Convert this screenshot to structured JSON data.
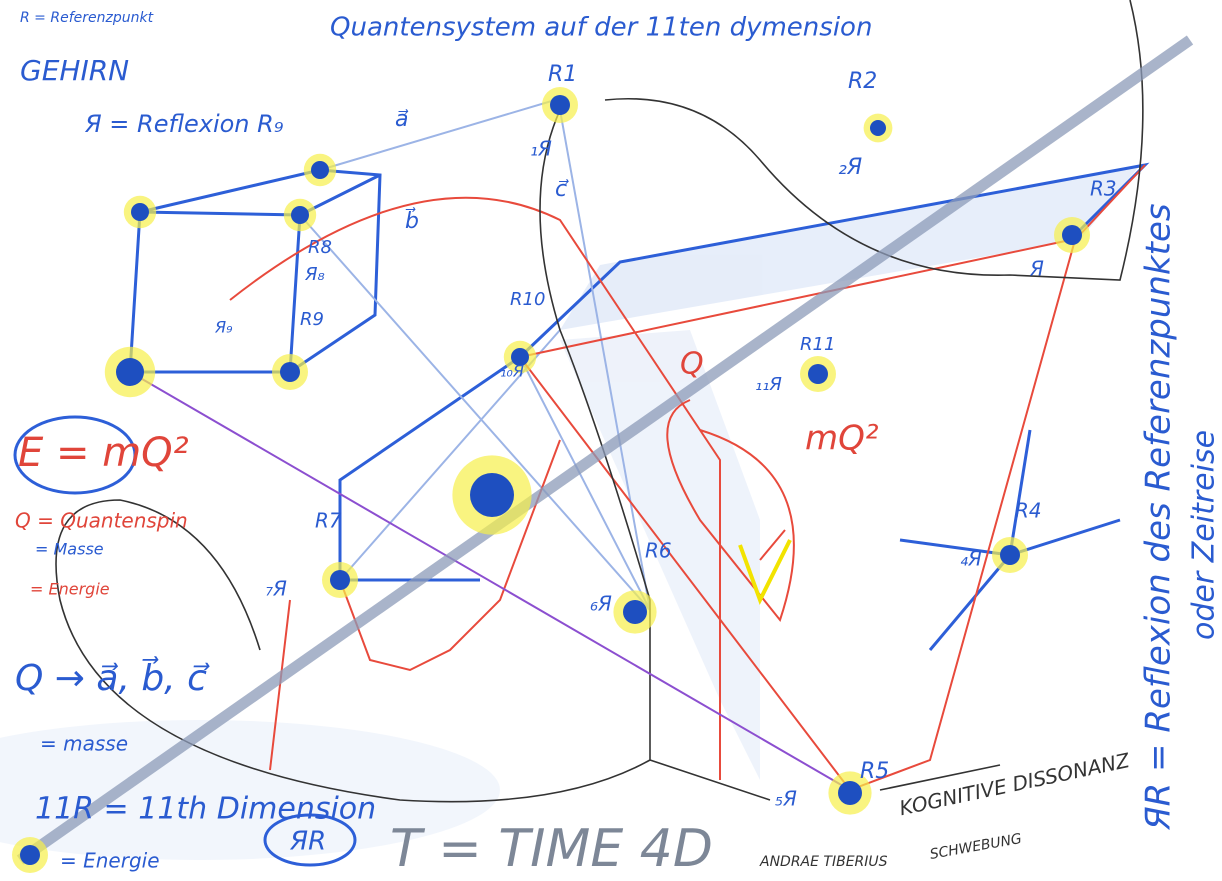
{
  "header": {
    "reference": "R = Referenzpunkt",
    "title": "Quantensystem auf der 11ten dymension",
    "brain": "GEHIRN",
    "reflection": "Я = Reflexion R₉"
  },
  "vectors": {
    "a": "a⃗",
    "b": "b⃗",
    "c": "c⃗"
  },
  "nodes": [
    {
      "label": "R1",
      "reflection": "₁Я"
    },
    {
      "label": "R2",
      "reflection": "₂Я"
    },
    {
      "label": "R3",
      "reflection": "Я"
    },
    {
      "label": "R4",
      "reflection": "₄Я"
    },
    {
      "label": "R5",
      "reflection": "₅Я"
    },
    {
      "label": "R6",
      "reflection": "₆Я"
    },
    {
      "label": "R7",
      "reflection": "₇Я"
    },
    {
      "label": "R8",
      "reflection": "Я₈"
    },
    {
      "label": "R9",
      "reflection": "Я₉"
    },
    {
      "label": "R10",
      "reflection": "₁₀Я"
    },
    {
      "label": "R11",
      "reflection": "₁₁Я"
    }
  ],
  "formulas": {
    "energy": "E = mQ²",
    "spin": "Q = Quantenspin",
    "mass": "= Masse",
    "energy_dot": "= Energie",
    "vectors": "Q → a⃗, b⃗, c⃗",
    "mass2": "= masse",
    "dimension": "11R = 11th Dimension",
    "energy2": "= Energie",
    "rr": "ЯR",
    "time": "T = TIME 4D",
    "mq": "mQ²",
    "q": "Q"
  },
  "notes": {
    "dissonance": "KOGNITIVE DISSONANZ",
    "author": "ANDRAE TIBERIUS",
    "hover": "SCHWEBUNG",
    "side1": "ЯR = Reflexion des Referenzpunktes",
    "side2": "oder Zeitreise"
  }
}
